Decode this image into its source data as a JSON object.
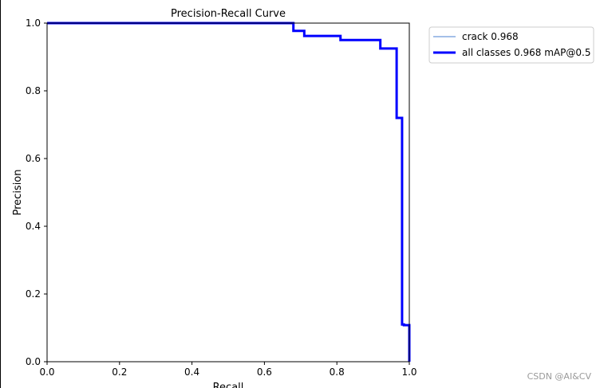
{
  "watermark": "CSDN @AI&CV",
  "chart_data": {
    "type": "line",
    "title": "Precision-Recall Curve",
    "xlabel": "Recall",
    "ylabel": "Precision",
    "xlim": [
      0,
      1
    ],
    "ylim": [
      0,
      1
    ],
    "xticks": [
      "0.0",
      "0.2",
      "0.4",
      "0.6",
      "0.8",
      "1.0"
    ],
    "yticks": [
      "0.0",
      "0.2",
      "0.4",
      "0.6",
      "0.8",
      "1.0"
    ],
    "grid": false,
    "legend_position": "outside-top-right",
    "series": [
      {
        "name": "crack 0.968",
        "color": "#4a7fd0",
        "style": "thin",
        "x": [
          0.0,
          0.68,
          0.68,
          0.71,
          0.71,
          0.81,
          0.81,
          0.92,
          0.92,
          0.965,
          0.965,
          0.98,
          0.98,
          0.985,
          0.985,
          1.0,
          1.0
        ],
        "y": [
          1.0,
          1.0,
          0.977,
          0.977,
          0.962,
          0.962,
          0.95,
          0.95,
          0.925,
          0.925,
          0.72,
          0.72,
          0.11,
          0.11,
          0.108,
          0.108,
          0.0
        ]
      },
      {
        "name": "all classes 0.968 mAP@0.5",
        "color": "#0000ff",
        "style": "thick",
        "x": [
          0.0,
          0.68,
          0.68,
          0.71,
          0.71,
          0.81,
          0.81,
          0.92,
          0.92,
          0.965,
          0.965,
          0.98,
          0.98,
          0.985,
          0.985,
          1.0,
          1.0
        ],
        "y": [
          1.0,
          1.0,
          0.977,
          0.977,
          0.962,
          0.962,
          0.95,
          0.95,
          0.925,
          0.925,
          0.72,
          0.72,
          0.11,
          0.11,
          0.108,
          0.108,
          0.0
        ]
      }
    ]
  }
}
